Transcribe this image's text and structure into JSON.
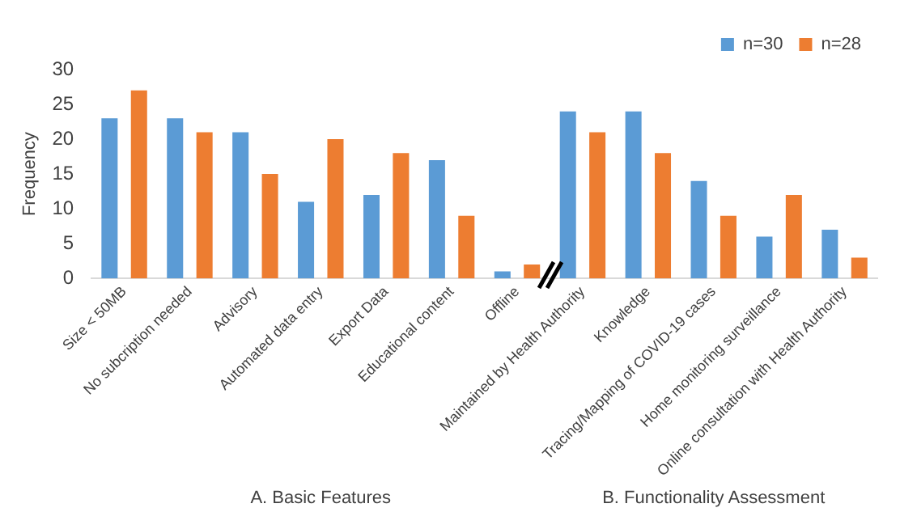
{
  "chart_data": {
    "type": "bar",
    "ylabel": "Frequency",
    "categories": [
      "Size < 50MB",
      "No subcription needed",
      "Advisory",
      "Automated data entry",
      "Export Data",
      "Educational content",
      "Offline",
      "Maintained by Health Authority",
      "Knowledge",
      "Tracing/Mapping of COVID-19 cases",
      "Home monitoring surveillance",
      "Online consultation with Health Authority"
    ],
    "series": [
      {
        "name": "n=30",
        "color": "#5b9bd5",
        "values": [
          23,
          23,
          21,
          11,
          12,
          17,
          1,
          24,
          24,
          14,
          6,
          7
        ]
      },
      {
        "name": "n=28",
        "color": "#ed7d31",
        "values": [
          27,
          21,
          15,
          20,
          18,
          9,
          2,
          21,
          18,
          9,
          12,
          3
        ]
      }
    ],
    "ylim": [
      0,
      30
    ],
    "yticks": [
      0,
      5,
      10,
      15,
      20,
      25,
      30
    ],
    "grid": false,
    "legend": "top right",
    "annotations": [
      "A. Basic Features",
      "B. Functionality Assessment"
    ]
  }
}
